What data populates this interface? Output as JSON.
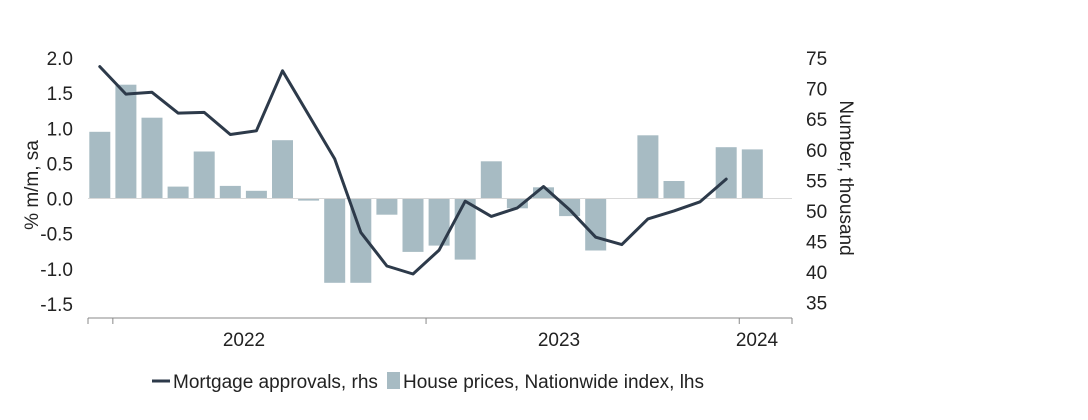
{
  "chart_data": {
    "type": "bar+line",
    "title": "",
    "x": [
      "2021-12",
      "2022-01",
      "2022-02",
      "2022-03",
      "2022-04",
      "2022-05",
      "2022-06",
      "2022-07",
      "2022-08",
      "2022-09",
      "2022-10",
      "2022-11",
      "2022-12",
      "2023-01",
      "2023-02",
      "2023-03",
      "2023-04",
      "2023-05",
      "2023-06",
      "2023-07",
      "2023-08",
      "2023-09",
      "2023-10",
      "2023-11",
      "2023-12",
      "2024-01",
      "2024-02"
    ],
    "year_labels": [
      "2022",
      "2023",
      "2024"
    ],
    "left_axis": {
      "label": "% m/m, sa",
      "ylim": [
        -1.7,
        2.0
      ],
      "ticks": [
        "2.0",
        "1.5",
        "1.0",
        "0.5",
        "0.0",
        "-0.5",
        "-1.0",
        "-1.5"
      ],
      "tick_values": [
        2.0,
        1.5,
        1.0,
        0.5,
        0.0,
        -0.5,
        -1.0,
        -1.5
      ]
    },
    "right_axis": {
      "label": "Number, thousand",
      "ylim": [
        32.5,
        75
      ],
      "ticks": [
        "75",
        "70",
        "65",
        "60",
        "55",
        "50",
        "45",
        "40",
        "35"
      ],
      "tick_values": [
        75,
        70,
        65,
        60,
        55,
        50,
        45,
        40,
        35
      ]
    },
    "series": [
      {
        "name": "House prices, Nationwide index, lhs",
        "type": "bar",
        "axis": "left",
        "color": "#a7bbc3",
        "values": [
          0.95,
          1.62,
          1.15,
          0.17,
          0.67,
          0.18,
          0.11,
          0.83,
          -0.03,
          -1.2,
          -1.2,
          -0.23,
          -0.76,
          -0.67,
          -0.87,
          0.53,
          -0.14,
          0.16,
          -0.25,
          -0.74,
          null,
          0.9,
          0.25,
          null,
          0.73,
          0.7,
          null
        ]
      },
      {
        "name": "Mortgage approvals, rhs",
        "type": "line",
        "axis": "right",
        "color": "#2d3a4a",
        "values": [
          73.6,
          69.1,
          69.4,
          66.0,
          66.1,
          62.5,
          63.1,
          72.9,
          null,
          58.5,
          46.5,
          41.0,
          39.7,
          43.6,
          51.6,
          49.1,
          50.5,
          54.0,
          50.2,
          45.7,
          44.5,
          48.7,
          50.0,
          51.5,
          55.2,
          null,
          null
        ]
      }
    ],
    "legend": {
      "position": "bottom",
      "items": [
        "Mortgage approvals, rhs",
        "House prices, Nationwide index, lhs"
      ]
    }
  }
}
